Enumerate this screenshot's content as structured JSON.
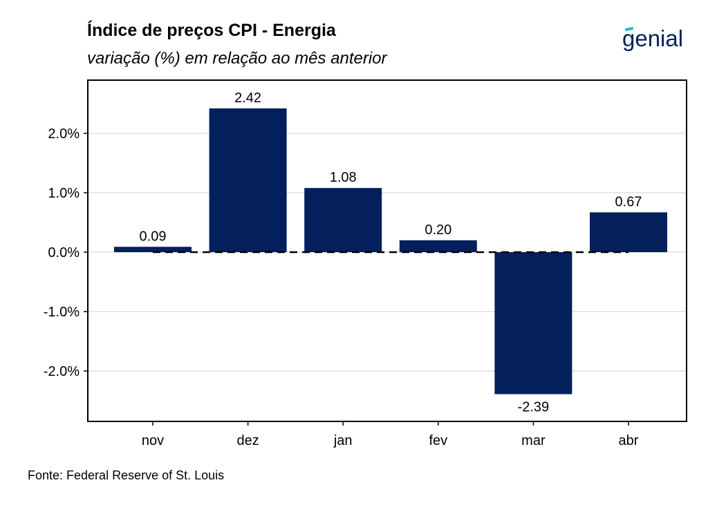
{
  "header": {
    "title": "Índice de preços CPI - Energia",
    "subtitle": "variação (%) em relação ao mês anterior",
    "brand": "genial"
  },
  "footer": {
    "source": "Fonte: Federal Reserve of St. Louis"
  },
  "colors": {
    "bar": "#04205c",
    "brand": "#04205c",
    "brand_accent": "#2ab7c9",
    "grid": "#e6e6e6"
  },
  "chart_data": {
    "type": "bar",
    "title": "Índice de preços CPI - Energia",
    "subtitle": "variação (%) em relação ao mês anterior",
    "categories": [
      "nov",
      "dez",
      "jan",
      "fev",
      "mar",
      "abr"
    ],
    "values": [
      0.09,
      2.42,
      1.08,
      0.2,
      -2.39,
      0.67
    ],
    "data_labels": [
      "0.09",
      "2.42",
      "1.08",
      "0.20",
      "-2.39",
      "0.67"
    ],
    "ylim": [
      -2.9,
      2.9
    ],
    "yticks": [
      -2,
      -1,
      0,
      1,
      2
    ],
    "ytick_labels": [
      "-2.0%",
      "-1.0%",
      "0.0%",
      "1.0%",
      "2.0%"
    ],
    "reference_line": {
      "y": 0,
      "style": "dashed"
    },
    "grid": true,
    "legend": "none"
  }
}
